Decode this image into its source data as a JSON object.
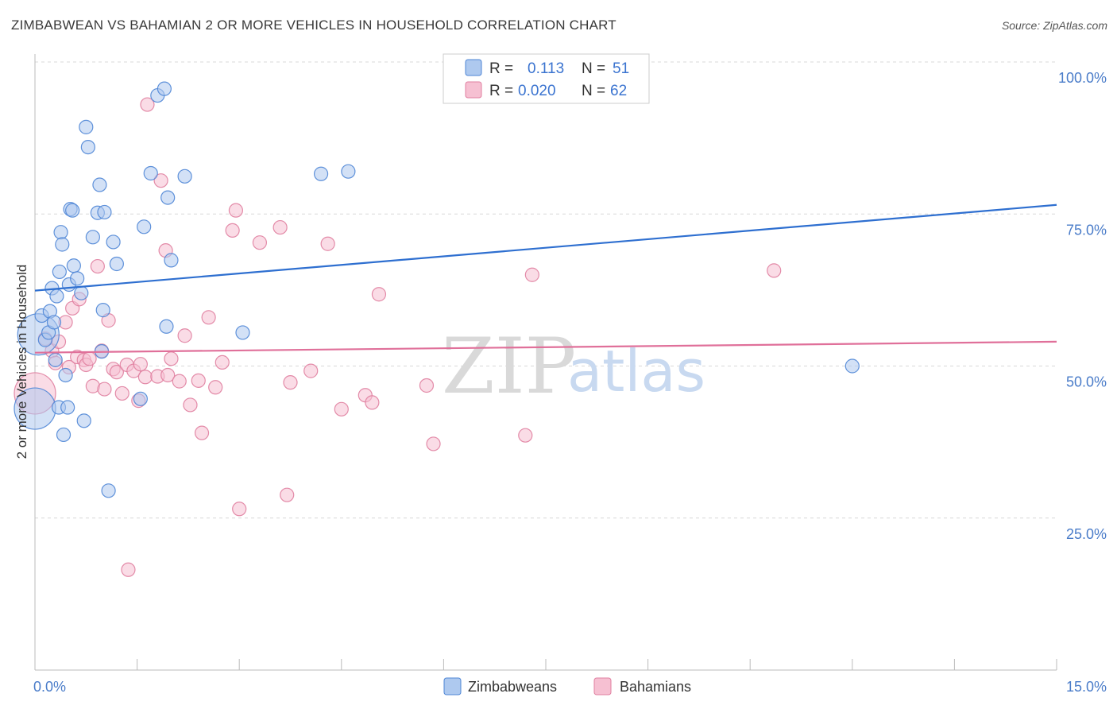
{
  "header": {
    "title": "ZIMBABWEAN VS BAHAMIAN 2 OR MORE VEHICLES IN HOUSEHOLD CORRELATION CHART",
    "source": "Source: ZipAtlas.com"
  },
  "legend_top": {
    "rows": [
      {
        "r_label": "R =",
        "r_value": "0.113",
        "n_label": "N =",
        "n_value": "51"
      },
      {
        "r_label": "R =",
        "r_value": "0.020",
        "n_label": "N =",
        "n_value": "62"
      }
    ]
  },
  "watermark": {
    "zip": "ZIP",
    "atlas": "atlas"
  },
  "colors": {
    "blue_fill": "#aec9ef",
    "blue_stroke": "#4f86d6",
    "blue_line": "#2e6fd0",
    "pink_fill": "#f6c0d2",
    "pink_stroke": "#e07fa0",
    "pink_line": "#e0709a",
    "grid": "#d8d8d8",
    "tick_text": "#4a7cc9"
  },
  "chart_data": {
    "type": "scatter",
    "title": "ZIMBABWEAN VS BAHAMIAN 2 OR MORE VEHICLES IN HOUSEHOLD CORRELATION CHART",
    "xlabel": "",
    "ylabel": "2 or more Vehicles in Household",
    "xlim": [
      0,
      15
    ],
    "ylim": [
      0,
      100
    ],
    "x_tick_labels": [
      "0.0%",
      "15.0%"
    ],
    "y_ticks": [
      25,
      50,
      75,
      100
    ],
    "y_tick_labels": [
      "25.0%",
      "50.0%",
      "75.0%",
      "100.0%"
    ],
    "grid": true,
    "legend_placement": "top-center",
    "series": [
      {
        "name": "Zimbabweans",
        "color": "#aec9ef",
        "r": 0.113,
        "n": 51,
        "trend": {
          "x": [
            0,
            15
          ],
          "y": [
            62.4,
            76.5
          ]
        },
        "points": [
          {
            "x": 0.05,
            "y": 55.2,
            "s": "l"
          },
          {
            "x": 0.0,
            "y": 43,
            "s": "l"
          },
          {
            "x": 0.1,
            "y": 58.3
          },
          {
            "x": 0.15,
            "y": 54.3
          },
          {
            "x": 0.2,
            "y": 55.5
          },
          {
            "x": 0.22,
            "y": 59
          },
          {
            "x": 0.25,
            "y": 62.8
          },
          {
            "x": 0.28,
            "y": 57.2
          },
          {
            "x": 0.3,
            "y": 51
          },
          {
            "x": 0.32,
            "y": 61.5
          },
          {
            "x": 0.35,
            "y": 43.2
          },
          {
            "x": 0.36,
            "y": 65.5
          },
          {
            "x": 0.38,
            "y": 72
          },
          {
            "x": 0.4,
            "y": 70
          },
          {
            "x": 0.42,
            "y": 38.7
          },
          {
            "x": 0.45,
            "y": 48.5
          },
          {
            "x": 0.48,
            "y": 43.2
          },
          {
            "x": 0.5,
            "y": 63.4
          },
          {
            "x": 0.52,
            "y": 75.8
          },
          {
            "x": 0.55,
            "y": 75.6
          },
          {
            "x": 0.57,
            "y": 66.5
          },
          {
            "x": 0.62,
            "y": 64.4
          },
          {
            "x": 0.68,
            "y": 62
          },
          {
            "x": 0.72,
            "y": 41
          },
          {
            "x": 0.75,
            "y": 89.3
          },
          {
            "x": 0.78,
            "y": 86
          },
          {
            "x": 0.85,
            "y": 71.2
          },
          {
            "x": 0.92,
            "y": 75.2
          },
          {
            "x": 0.95,
            "y": 79.8
          },
          {
            "x": 0.98,
            "y": 52.4
          },
          {
            "x": 1.0,
            "y": 59.2
          },
          {
            "x": 1.02,
            "y": 75.3
          },
          {
            "x": 1.08,
            "y": 29.5
          },
          {
            "x": 1.15,
            "y": 70.4
          },
          {
            "x": 1.2,
            "y": 66.8
          },
          {
            "x": 1.55,
            "y": 44.6
          },
          {
            "x": 1.6,
            "y": 72.9
          },
          {
            "x": 1.7,
            "y": 81.7
          },
          {
            "x": 1.8,
            "y": 94.5
          },
          {
            "x": 1.9,
            "y": 95.6
          },
          {
            "x": 1.93,
            "y": 56.5
          },
          {
            "x": 1.95,
            "y": 77.7
          },
          {
            "x": 2.0,
            "y": 67.4
          },
          {
            "x": 2.2,
            "y": 81.2
          },
          {
            "x": 3.05,
            "y": 55.5
          },
          {
            "x": 4.2,
            "y": 81.6
          },
          {
            "x": 4.6,
            "y": 82
          },
          {
            "x": 12.0,
            "y": 50
          }
        ]
      },
      {
        "name": "Bahamians",
        "color": "#f6c0d2",
        "r": 0.02,
        "n": 62,
        "trend": {
          "x": [
            0,
            15
          ],
          "y": [
            52.2,
            54
          ]
        },
        "points": [
          {
            "x": 0.0,
            "y": 45.5,
            "s": "l"
          },
          {
            "x": 0.15,
            "y": 54.5
          },
          {
            "x": 0.25,
            "y": 52.5
          },
          {
            "x": 0.3,
            "y": 50.5
          },
          {
            "x": 0.35,
            "y": 54
          },
          {
            "x": 0.45,
            "y": 57.2
          },
          {
            "x": 0.5,
            "y": 49.8
          },
          {
            "x": 0.55,
            "y": 59.5
          },
          {
            "x": 0.62,
            "y": 51.5
          },
          {
            "x": 0.65,
            "y": 61
          },
          {
            "x": 0.72,
            "y": 51
          },
          {
            "x": 0.75,
            "y": 50.2
          },
          {
            "x": 0.8,
            "y": 51.2
          },
          {
            "x": 0.85,
            "y": 46.7
          },
          {
            "x": 0.92,
            "y": 66.4
          },
          {
            "x": 0.98,
            "y": 52.5
          },
          {
            "x": 1.02,
            "y": 46.2
          },
          {
            "x": 1.08,
            "y": 57.5
          },
          {
            "x": 1.15,
            "y": 49.5
          },
          {
            "x": 1.2,
            "y": 49
          },
          {
            "x": 1.28,
            "y": 45.5
          },
          {
            "x": 1.35,
            "y": 50.2
          },
          {
            "x": 1.37,
            "y": 16.5
          },
          {
            "x": 1.45,
            "y": 49.2
          },
          {
            "x": 1.52,
            "y": 44.3
          },
          {
            "x": 1.55,
            "y": 50.3
          },
          {
            "x": 1.62,
            "y": 48.2
          },
          {
            "x": 1.65,
            "y": 93
          },
          {
            "x": 1.8,
            "y": 48.3
          },
          {
            "x": 1.85,
            "y": 80.5
          },
          {
            "x": 1.92,
            "y": 69
          },
          {
            "x": 1.95,
            "y": 48.5
          },
          {
            "x": 2.0,
            "y": 51.2
          },
          {
            "x": 2.12,
            "y": 47.5
          },
          {
            "x": 2.2,
            "y": 55
          },
          {
            "x": 2.28,
            "y": 43.6
          },
          {
            "x": 2.4,
            "y": 47.6
          },
          {
            "x": 2.45,
            "y": 39
          },
          {
            "x": 2.55,
            "y": 58
          },
          {
            "x": 2.65,
            "y": 46.5
          },
          {
            "x": 2.75,
            "y": 50.6
          },
          {
            "x": 2.9,
            "y": 72.3
          },
          {
            "x": 2.95,
            "y": 75.6
          },
          {
            "x": 3.0,
            "y": 26.5
          },
          {
            "x": 3.3,
            "y": 70.3
          },
          {
            "x": 3.6,
            "y": 72.8
          },
          {
            "x": 3.7,
            "y": 28.8
          },
          {
            "x": 3.75,
            "y": 47.3
          },
          {
            "x": 4.05,
            "y": 49.2
          },
          {
            "x": 4.3,
            "y": 70.1
          },
          {
            "x": 4.5,
            "y": 42.9
          },
          {
            "x": 4.85,
            "y": 45.2
          },
          {
            "x": 4.95,
            "y": 44
          },
          {
            "x": 5.05,
            "y": 61.8
          },
          {
            "x": 5.75,
            "y": 46.8
          },
          {
            "x": 5.85,
            "y": 37.2
          },
          {
            "x": 7.2,
            "y": 38.6
          },
          {
            "x": 7.3,
            "y": 65
          },
          {
            "x": 10.85,
            "y": 65.7
          }
        ]
      }
    ]
  }
}
